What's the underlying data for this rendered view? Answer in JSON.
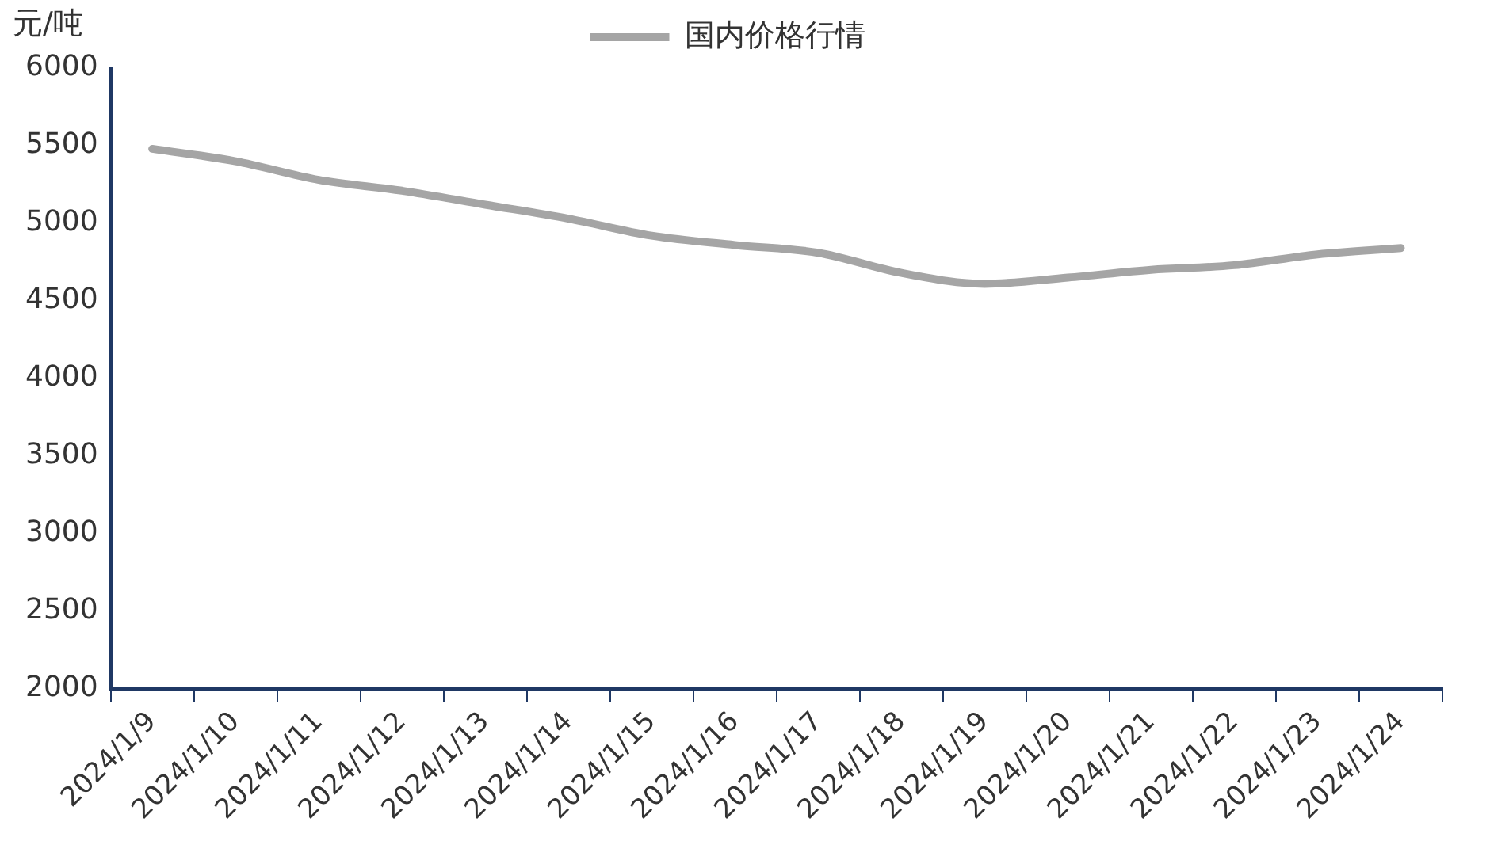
{
  "chart_data": {
    "type": "line",
    "ylabel": "元/吨",
    "legend": "top",
    "grid": false,
    "marker": "none",
    "line_style": "solid",
    "categories": [
      "2024/1/9",
      "2024/1/10",
      "2024/1/11",
      "2024/1/12",
      "2024/1/13",
      "2024/1/14",
      "2024/1/15",
      "2024/1/16",
      "2024/1/17",
      "2024/1/18",
      "2024/1/19",
      "2024/1/20",
      "2024/1/21",
      "2024/1/22",
      "2024/1/23",
      "2024/1/24"
    ],
    "series": [
      {
        "name": "国内价格行情",
        "color": "#a5a5a5",
        "values": [
          5480,
          5400,
          5280,
          5210,
          5120,
          5030,
          4920,
          4860,
          4810,
          4680,
          4610,
          4650,
          4700,
          4730,
          4800,
          4840
        ]
      }
    ],
    "ylim": [
      2000,
      6000
    ],
    "yticks": [
      2000,
      2500,
      3000,
      3500,
      4000,
      4500,
      5000,
      5500,
      6000
    ]
  }
}
